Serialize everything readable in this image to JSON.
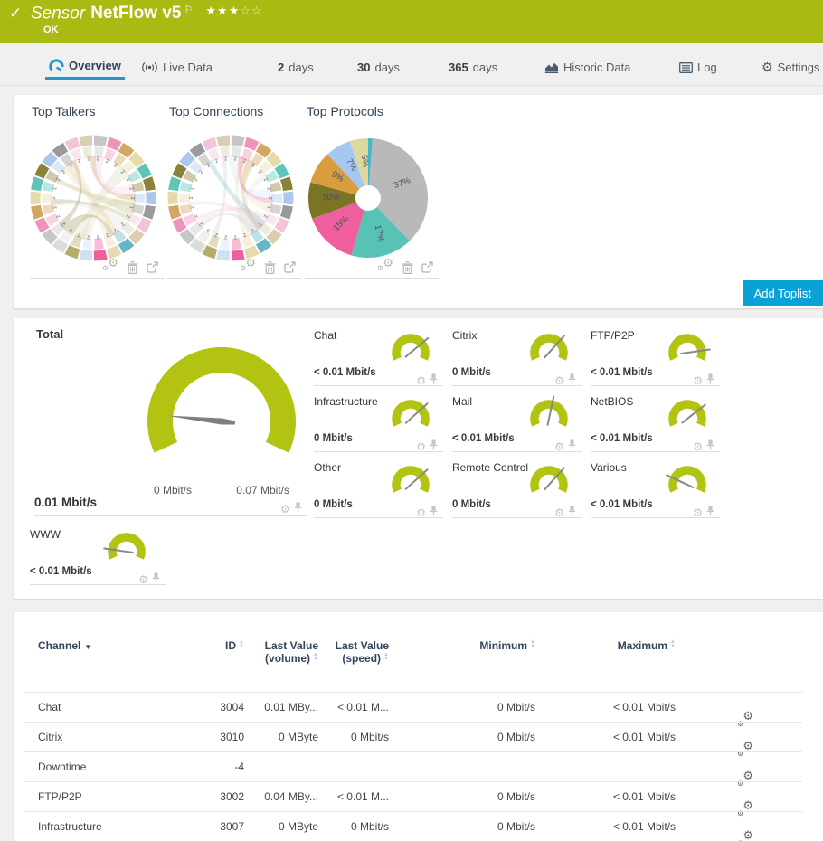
{
  "colors": {
    "header_bg": "#a9ba13",
    "accent_blue": "#2196d1",
    "button_blue": "#0aa1d6",
    "gauge_green": "#b2c312",
    "needle_gray": "#7f7f7f",
    "navy": "#32455c"
  },
  "header": {
    "check_icon": "✓",
    "kind": "Sensor",
    "title": "NetFlow v5",
    "flag_icon": "⚐",
    "stars_filled": 3,
    "stars_total": 5,
    "star_filled_glyph": "★",
    "star_empty_glyph": "☆",
    "status": "OK"
  },
  "tabs": [
    {
      "id": "overview",
      "label": "Overview",
      "icon": "gauge-icon",
      "active": true
    },
    {
      "id": "live-data",
      "label": "Live Data",
      "icon": "live-data-icon"
    },
    {
      "id": "2-days",
      "prefix": "2",
      "label": "days"
    },
    {
      "id": "30-days",
      "prefix": "30",
      "label": "days"
    },
    {
      "id": "365-days",
      "prefix": "365",
      "label": "days"
    },
    {
      "id": "historic-data",
      "label": "Historic Data",
      "icon": "historic-data-icon"
    },
    {
      "id": "log",
      "label": "Log",
      "icon": "log-icon"
    },
    {
      "id": "settings",
      "label": "Settings",
      "icon": "settings-icon"
    }
  ],
  "toplists": {
    "charts": [
      {
        "title": "Top Talkers",
        "type": "chord"
      },
      {
        "title": "Top Connections",
        "type": "chord"
      },
      {
        "title": "Top Protocols",
        "type": "pie"
      }
    ],
    "add_button_label": "Add Toplist"
  },
  "chart_data": [
    {
      "type": "pie",
      "title": "Top Protocols",
      "labels": [
        "",
        "37%",
        "17%",
        "15%",
        "10%",
        "9%",
        "7%",
        "5%"
      ],
      "values": [
        1.2,
        37,
        17,
        15,
        10,
        9,
        7,
        5
      ],
      "colors": [
        "#45b8c8",
        "#b9b9b9",
        "#57c3b4",
        "#ef5f9d",
        "#7b7424",
        "#d89e3e",
        "#a6c8f0",
        "#ded7a0"
      ],
      "legend": "none",
      "donut_hole": true
    }
  ],
  "chord_palette": [
    "#c6c6c6",
    "#ef93bd",
    "#d4a65f",
    "#e3dbaa",
    "#5ec5b7",
    "#8b8138",
    "#abc8ec",
    "#9a9a9a",
    "#f2c3d9",
    "#d9ceb2",
    "#67b6c6",
    "#ead9b0",
    "#ee5f9d",
    "#cfe0f4",
    "#b5ab6a",
    "#dcdcdc"
  ],
  "gauges": {
    "total": {
      "title": "Total",
      "value": "0.01 Mbit/s",
      "min_label": "0 Mbit/s",
      "max_label": "0.07 Mbit/s",
      "needle_deg": 174
    },
    "channels": [
      {
        "title": "Chat",
        "value": "< 0.01 Mbit/s",
        "needle_deg": 40
      },
      {
        "title": "Citrix",
        "value": "0 Mbit/s",
        "needle_deg": 48
      },
      {
        "title": "FTP/P2P",
        "value": "< 0.01 Mbit/s",
        "needle_deg": 8
      },
      {
        "title": "Infrastructure",
        "value": "0 Mbit/s",
        "needle_deg": 42
      },
      {
        "title": "Mail",
        "value": "< 0.01 Mbit/s",
        "needle_deg": 78
      },
      {
        "title": "NetBIOS",
        "value": "< 0.01 Mbit/s",
        "needle_deg": 38
      },
      {
        "title": "Other",
        "value": "0 Mbit/s",
        "needle_deg": 42
      },
      {
        "title": "Remote Control",
        "value": "0 Mbit/s",
        "needle_deg": 48
      },
      {
        "title": "Various",
        "value": "< 0.01 Mbit/s",
        "needle_deg": 155
      },
      {
        "title": "WWW",
        "value": "< 0.01 Mbit/s",
        "needle_deg": 172
      }
    ]
  },
  "table": {
    "headers": [
      {
        "label": "Channel",
        "sort": "desc"
      },
      {
        "label": "ID",
        "sort": "both"
      },
      {
        "label": "Last Value",
        "sub": "(volume)",
        "sort": "both"
      },
      {
        "label": "Last Value",
        "sub": "(speed)",
        "sort": "both"
      },
      {
        "label": "Minimum",
        "sort": "both"
      },
      {
        "label": "Maximum",
        "sort": "both"
      }
    ],
    "rows": [
      [
        "Chat",
        "3004",
        "0.01 MBy...",
        "< 0.01 M...",
        "0 Mbit/s",
        "< 0.01 Mbit/s"
      ],
      [
        "Citrix",
        "3010",
        "0 MByte",
        "0 Mbit/s",
        "0 Mbit/s",
        "< 0.01 Mbit/s"
      ],
      [
        "Downtime",
        "-4",
        "",
        "",
        "",
        ""
      ],
      [
        "FTP/P2P",
        "3002",
        "0.04 MBy...",
        "< 0.01 M...",
        "0 Mbit/s",
        "< 0.01 Mbit/s"
      ],
      [
        "Infrastructure",
        "3007",
        "0 MByte",
        "0 Mbit/s",
        "0 Mbit/s",
        "< 0.01 Mbit/s"
      ]
    ]
  }
}
